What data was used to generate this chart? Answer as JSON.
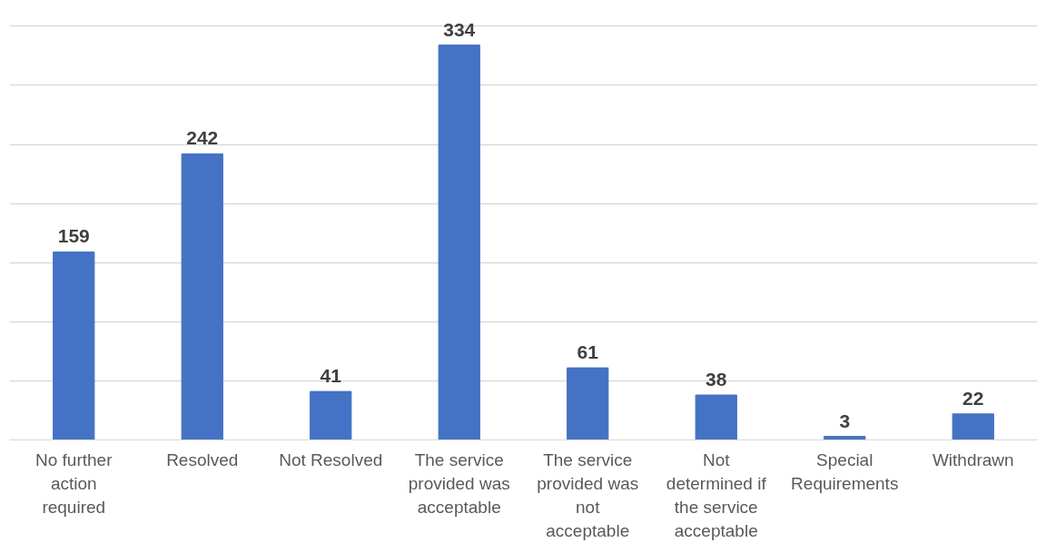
{
  "chart_data": {
    "type": "bar",
    "categories": [
      "No further action required",
      "Resolved",
      "Not Resolved",
      "The service provided was acceptable",
      "The service provided was not acceptable",
      "Not determined if the service acceptable",
      "Special Requirements",
      "Withdrawn"
    ],
    "values": [
      159,
      242,
      41,
      334,
      61,
      38,
      3,
      22
    ],
    "color": "#4472c4",
    "tick_labels": "x",
    "grid": "y",
    "data_labels": true
  }
}
